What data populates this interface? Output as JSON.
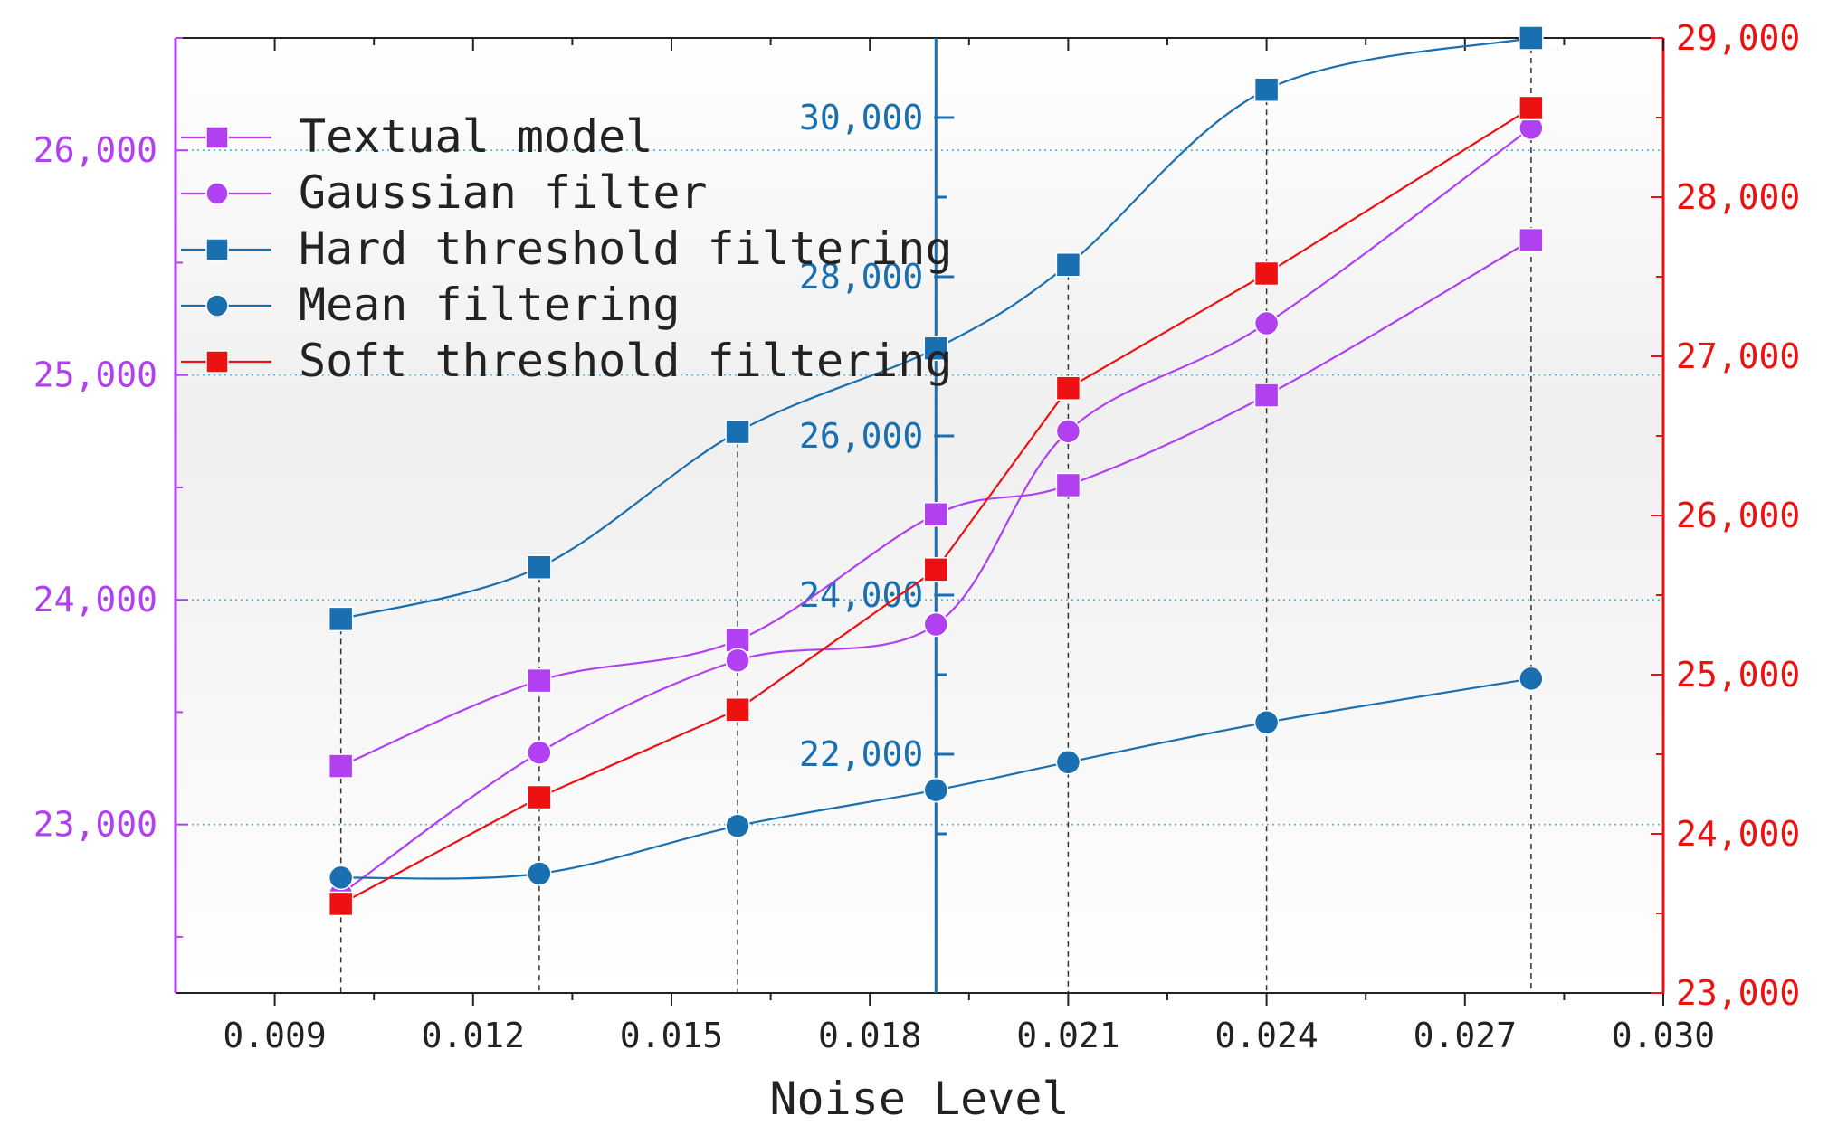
{
  "chart_data": {
    "type": "line",
    "xlabel": "Noise Level",
    "x": [
      0.01,
      0.013,
      0.016,
      0.019,
      0.021,
      0.024,
      0.028
    ],
    "xlim": [
      0.0075,
      0.03
    ],
    "x_ticks": [
      {
        "value": 0.009,
        "label": "0.009"
      },
      {
        "value": 0.012,
        "label": "0.012"
      },
      {
        "value": 0.015,
        "label": "0.015"
      },
      {
        "value": 0.018,
        "label": "0.018"
      },
      {
        "value": 0.021,
        "label": "0.021"
      },
      {
        "value": 0.024,
        "label": "0.024"
      },
      {
        "value": 0.027,
        "label": "0.027"
      },
      {
        "value": 0.03,
        "label": "0.030"
      }
    ],
    "axes": {
      "left": {
        "color": "#b040f0",
        "ylim": [
          22250,
          26500
        ],
        "ticks": [
          {
            "value": 23000,
            "label": "23,000"
          },
          {
            "value": 24000,
            "label": "24,000"
          },
          {
            "value": 25000,
            "label": "25,000"
          },
          {
            "value": 26000,
            "label": "26,000"
          }
        ]
      },
      "middle": {
        "color": "#1a6fb0",
        "at_x": 0.019,
        "ylim": [
          19000,
          31000
        ],
        "ticks": [
          {
            "value": 22000,
            "label": "22,000"
          },
          {
            "value": 24000,
            "label": "24,000"
          },
          {
            "value": 26000,
            "label": "26,000"
          },
          {
            "value": 28000,
            "label": "28,000"
          },
          {
            "value": 30000,
            "label": "30,000"
          }
        ]
      },
      "right": {
        "color": "#ee1111",
        "ylim": [
          23000,
          29000
        ],
        "ticks": [
          {
            "value": 23000,
            "label": "23,000"
          },
          {
            "value": 24000,
            "label": "24,000"
          },
          {
            "value": 25000,
            "label": "25,000"
          },
          {
            "value": 26000,
            "label": "26,000"
          },
          {
            "value": 27000,
            "label": "27,000"
          },
          {
            "value": 28000,
            "label": "28,000"
          },
          {
            "value": 29000,
            "label": "29,000"
          }
        ]
      }
    },
    "series": [
      {
        "name": "Textual model",
        "axis": "left",
        "marker": "square",
        "color": "#b040f0",
        "values": [
          23260,
          23640,
          23820,
          24380,
          24510,
          24910,
          25600
        ]
      },
      {
        "name": "Gaussian filter",
        "axis": "left",
        "marker": "circle",
        "color": "#b040f0",
        "values": [
          22690,
          23320,
          23730,
          23890,
          24750,
          25230,
          26100
        ]
      },
      {
        "name": "Hard threshold filtering",
        "axis": "middle",
        "marker": "square",
        "color": "#1a6fb0",
        "values": [
          23700,
          24350,
          26050,
          27100,
          28150,
          30350,
          31000
        ]
      },
      {
        "name": "Mean filtering",
        "axis": "middle",
        "marker": "circle",
        "color": "#1a6fb0",
        "values": [
          20450,
          20500,
          21100,
          21550,
          21900,
          22400,
          22950
        ]
      },
      {
        "name": "Soft threshold filtering",
        "axis": "right",
        "marker": "square",
        "color": "#ee1111",
        "values": [
          23560,
          24230,
          24780,
          25660,
          26800,
          27520,
          28560
        ]
      }
    ],
    "legend": "top-left"
  }
}
